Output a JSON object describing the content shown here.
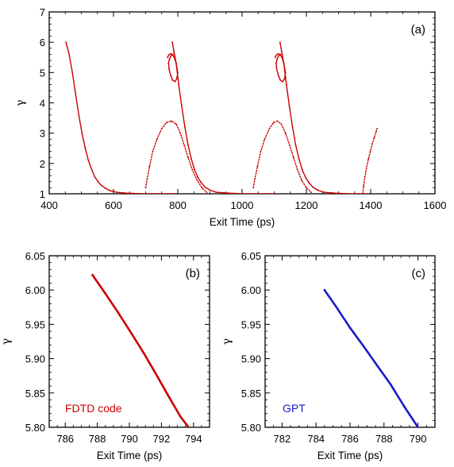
{
  "chart_data": [
    {
      "type": "scatter",
      "panel_label": "(a)",
      "xlabel": "Exit Time  (ps)",
      "ylabel": "γ",
      "xlim": [
        400,
        1600
      ],
      "ylim": [
        1,
        7
      ],
      "xticks": [
        "400",
        "600",
        "800",
        "1000",
        "1200",
        "1400",
        "1600"
      ],
      "yticks": [
        "1",
        "2",
        "3",
        "4",
        "5",
        "6",
        "7"
      ],
      "color": "#cc0000",
      "series": [
        {
          "x": [
            452,
            462,
            472,
            482,
            492,
            502,
            512,
            522,
            532,
            542,
            552,
            562,
            575,
            590,
            610,
            640,
            690,
            740,
            770,
            785
          ],
          "y": [
            6.0,
            5.6,
            5.0,
            4.3,
            3.6,
            3.0,
            2.5,
            2.1,
            1.8,
            1.55,
            1.4,
            1.28,
            1.18,
            1.1,
            1.05,
            1.02,
            1.0,
            1.0,
            1.0,
            1.0
          ]
        },
        {
          "x": [
            700,
            705,
            712,
            722,
            735,
            750,
            765,
            780,
            795,
            808,
            820,
            832,
            845,
            860,
            875,
            890
          ],
          "y": [
            1.2,
            1.5,
            1.9,
            2.4,
            2.8,
            3.15,
            3.35,
            3.4,
            3.3,
            3.0,
            2.6,
            2.2,
            1.8,
            1.45,
            1.2,
            1.05
          ]
        },
        {
          "x": [
            783,
            788,
            795,
            803,
            812,
            822,
            832,
            842,
            852,
            862,
            872,
            885,
            900,
            920,
            960,
            1000,
            1040,
            1080,
            1100
          ],
          "y": [
            6.0,
            5.7,
            5.3,
            4.6,
            3.9,
            3.2,
            2.6,
            2.15,
            1.8,
            1.55,
            1.38,
            1.22,
            1.12,
            1.05,
            1.02,
            1.0,
            1.0,
            1.0,
            1.0
          ]
        },
        {
          "x": [
            768,
            772,
            777,
            783,
            789,
            795,
            800,
            797,
            791,
            784,
            778,
            773,
            771,
            774,
            779,
            785
          ],
          "y": [
            5.5,
            5.58,
            5.62,
            5.6,
            5.5,
            5.3,
            5.0,
            4.8,
            4.7,
            4.75,
            4.9,
            5.1,
            5.3,
            5.45,
            5.55,
            5.6
          ]
        },
        {
          "x": [
            1035,
            1040,
            1048,
            1058,
            1070,
            1085,
            1098,
            1110,
            1122,
            1135,
            1148,
            1160,
            1172,
            1185,
            1200,
            1215
          ],
          "y": [
            1.2,
            1.5,
            1.9,
            2.4,
            2.8,
            3.15,
            3.35,
            3.4,
            3.3,
            3.0,
            2.6,
            2.2,
            1.8,
            1.45,
            1.2,
            1.05
          ]
        },
        {
          "x": [
            1118,
            1123,
            1130,
            1138,
            1147,
            1157,
            1167,
            1177,
            1187,
            1197,
            1207,
            1220,
            1235,
            1255,
            1290,
            1330,
            1365,
            1385
          ],
          "y": [
            6.0,
            5.7,
            5.3,
            4.6,
            3.9,
            3.2,
            2.6,
            2.15,
            1.8,
            1.55,
            1.38,
            1.22,
            1.12,
            1.05,
            1.02,
            1.0,
            1.0,
            1.0
          ]
        },
        {
          "x": [
            1103,
            1107,
            1112,
            1118,
            1124,
            1130,
            1135,
            1132,
            1126,
            1119,
            1113,
            1108,
            1106,
            1109,
            1114,
            1120
          ],
          "y": [
            5.5,
            5.58,
            5.62,
            5.6,
            5.5,
            5.3,
            5.0,
            4.8,
            4.7,
            4.75,
            4.9,
            5.1,
            5.3,
            5.45,
            5.55,
            5.6
          ]
        },
        {
          "x": [
            1375,
            1378,
            1382,
            1387,
            1393,
            1399,
            1405,
            1411,
            1417,
            1420
          ],
          "y": [
            1.0,
            1.25,
            1.55,
            1.85,
            2.15,
            2.4,
            2.65,
            2.85,
            3.05,
            3.15
          ]
        }
      ]
    },
    {
      "type": "scatter",
      "panel_label": "(b)",
      "annotation": "FDTD code",
      "xlabel": "Exit Time  (ps)",
      "ylabel": "γ",
      "xlim": [
        785,
        795
      ],
      "ylim": [
        5.8,
        6.05
      ],
      "xticks": [
        "786",
        "788",
        "790",
        "792",
        "794"
      ],
      "yticks": [
        "5.80",
        "5.85",
        "5.90",
        "5.95",
        "6.00",
        "6.05"
      ],
      "color": "#cc0000",
      "series": [
        {
          "x": [
            787.7,
            788.5,
            789.3,
            790.1,
            790.9,
            791.7,
            792.5,
            793.2,
            793.7
          ],
          "y": [
            6.022,
            5.995,
            5.967,
            5.938,
            5.908,
            5.876,
            5.843,
            5.815,
            5.8
          ]
        }
      ]
    },
    {
      "type": "scatter",
      "panel_label": "(c)",
      "annotation": "GPT",
      "xlabel": "Exit Time  (ps)",
      "ylabel": "γ",
      "xlim": [
        781,
        791
      ],
      "ylim": [
        5.8,
        6.05
      ],
      "xticks": [
        "782",
        "784",
        "786",
        "788",
        "790"
      ],
      "yticks": [
        "5.80",
        "5.85",
        "5.90",
        "5.95",
        "6.00",
        "6.05"
      ],
      "color": "#1a1acc",
      "series": [
        {
          "x": [
            784.5,
            785.2,
            786.0,
            786.8,
            787.6,
            788.4,
            789.2,
            790.0
          ],
          "y": [
            6.0,
            5.975,
            5.945,
            5.918,
            5.89,
            5.862,
            5.83,
            5.8
          ]
        }
      ]
    }
  ]
}
